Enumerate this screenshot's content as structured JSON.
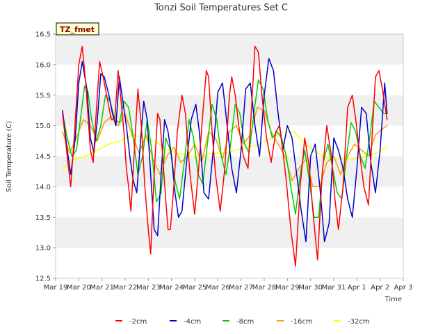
{
  "chart_data": {
    "type": "line",
    "title": "Tonzi Soil Temperatures Set C",
    "xlabel": "Time",
    "ylabel": "Soil Temperature (C)",
    "ylim": [
      12.5,
      16.5
    ],
    "xlim": [
      0,
      15
    ],
    "yticks": [
      "12.5",
      "13.0",
      "13.5",
      "14.0",
      "14.5",
      "15.0",
      "15.5",
      "16.0",
      "16.5"
    ],
    "xticks": [
      "Mar 19",
      "Mar 20",
      "Mar 21",
      "Mar 22",
      "Mar 23",
      "Mar 24",
      "Mar 25",
      "Mar 26",
      "Mar 27",
      "Mar 28",
      "Mar 29",
      "Mar 30",
      "Mar 31",
      "Apr 1",
      "Apr 2",
      "Apr 3"
    ],
    "grid": "horizontal bands",
    "legend_position": "bottom",
    "badge": "TZ_fmet",
    "x_note": "x values are days since Mar 19 00:00",
    "series": [
      {
        "name": "-2cm",
        "color": "#ff0000",
        "x": [
          0.3,
          0.5,
          0.65,
          0.8,
          1.0,
          1.15,
          1.3,
          1.5,
          1.62,
          1.75,
          1.9,
          2.05,
          2.25,
          2.4,
          2.55,
          2.7,
          2.85,
          2.95,
          3.05,
          3.15,
          3.25,
          3.4,
          3.55,
          3.7,
          3.85,
          4.0,
          4.1,
          4.25,
          4.4,
          4.5,
          4.6,
          4.75,
          4.85,
          4.95,
          5.1,
          5.25,
          5.45,
          5.6,
          5.8,
          6.0,
          6.15,
          6.35,
          6.5,
          6.6,
          6.75,
          6.9,
          7.1,
          7.3,
          7.5,
          7.6,
          7.75,
          7.9,
          8.1,
          8.3,
          8.5,
          8.6,
          8.75,
          8.9,
          9.1,
          9.3,
          9.5,
          9.65,
          9.8,
          9.95,
          10.15,
          10.35,
          10.55,
          10.75,
          10.95,
          11.1,
          11.3,
          11.5,
          11.7,
          11.9,
          12.05,
          12.2,
          12.4,
          12.6,
          12.8,
          12.95,
          13.1,
          13.3,
          13.5,
          13.65,
          13.8,
          13.95,
          14.1,
          14.3
        ],
        "y": [
          15.2,
          14.5,
          14.0,
          14.8,
          16.0,
          16.3,
          15.7,
          14.6,
          14.4,
          15.2,
          16.05,
          15.8,
          15.4,
          15.1,
          15.1,
          15.9,
          15.3,
          14.9,
          14.3,
          14.0,
          13.6,
          14.6,
          15.6,
          15.0,
          14.0,
          13.3,
          12.9,
          14.2,
          15.2,
          15.1,
          14.6,
          13.8,
          13.3,
          13.3,
          14.0,
          14.9,
          15.5,
          15.2,
          14.2,
          13.55,
          14.2,
          15.2,
          15.9,
          15.8,
          14.9,
          14.2,
          13.6,
          14.3,
          15.5,
          15.8,
          15.5,
          15.0,
          14.5,
          14.3,
          15.6,
          16.3,
          16.2,
          15.5,
          14.8,
          14.4,
          14.9,
          15.0,
          14.6,
          14.1,
          13.3,
          12.7,
          14.0,
          14.8,
          14.3,
          13.6,
          12.8,
          14.2,
          15.0,
          14.5,
          13.8,
          13.3,
          14.0,
          15.3,
          15.5,
          15.1,
          14.6,
          14.0,
          13.7,
          14.8,
          15.8,
          15.9,
          15.6,
          15.1
        ]
      },
      {
        "name": "-4cm",
        "color": "#0000cc",
        "x": [
          0.3,
          0.5,
          0.65,
          0.85,
          1.0,
          1.15,
          1.35,
          1.5,
          1.65,
          1.8,
          1.95,
          2.1,
          2.3,
          2.45,
          2.6,
          2.75,
          2.9,
          3.05,
          3.2,
          3.35,
          3.5,
          3.65,
          3.8,
          3.95,
          4.1,
          4.25,
          4.4,
          4.55,
          4.7,
          4.85,
          5.0,
          5.15,
          5.3,
          5.45,
          5.65,
          5.85,
          6.05,
          6.2,
          6.4,
          6.6,
          6.8,
          7.0,
          7.2,
          7.4,
          7.6,
          7.8,
          8.0,
          8.2,
          8.4,
          8.6,
          8.8,
          9.0,
          9.2,
          9.4,
          9.6,
          9.8,
          10.0,
          10.2,
          10.4,
          10.6,
          10.8,
          11.0,
          11.2,
          11.4,
          11.6,
          11.8,
          12.0,
          12.2,
          12.4,
          12.6,
          12.8,
          13.0,
          13.2,
          13.4,
          13.6,
          13.8,
          14.0,
          14.2,
          14.3
        ],
        "y": [
          15.25,
          14.6,
          14.2,
          14.8,
          15.7,
          16.05,
          15.6,
          14.8,
          14.55,
          15.1,
          15.85,
          15.8,
          15.5,
          15.2,
          15.0,
          15.8,
          15.4,
          15.0,
          14.5,
          14.1,
          13.9,
          14.7,
          15.4,
          15.1,
          14.2,
          13.3,
          13.2,
          14.2,
          15.1,
          14.9,
          14.5,
          13.9,
          13.5,
          13.6,
          14.4,
          15.1,
          15.35,
          14.9,
          13.9,
          13.8,
          14.6,
          15.55,
          15.7,
          15.0,
          14.3,
          13.9,
          14.6,
          15.6,
          15.7,
          15.0,
          14.5,
          15.5,
          16.1,
          15.9,
          15.2,
          14.6,
          15.0,
          14.8,
          14.2,
          13.6,
          13.1,
          14.5,
          14.7,
          14.0,
          13.1,
          13.4,
          14.8,
          14.6,
          14.3,
          13.8,
          13.5,
          14.3,
          15.3,
          15.2,
          14.4,
          13.9,
          14.6,
          15.7,
          15.2
        ]
      },
      {
        "name": "-8cm",
        "color": "#00cc00",
        "x": [
          0.3,
          0.5,
          0.7,
          0.9,
          1.1,
          1.25,
          1.4,
          1.55,
          1.75,
          1.95,
          2.15,
          2.35,
          2.55,
          2.75,
          2.95,
          3.15,
          3.35,
          3.55,
          3.75,
          3.95,
          4.15,
          4.35,
          4.55,
          4.75,
          4.95,
          5.15,
          5.35,
          5.55,
          5.75,
          5.95,
          6.15,
          6.35,
          6.55,
          6.75,
          6.95,
          7.15,
          7.35,
          7.55,
          7.75,
          7.95,
          8.15,
          8.35,
          8.55,
          8.75,
          8.95,
          9.15,
          9.35,
          9.55,
          9.75,
          9.95,
          10.15,
          10.35,
          10.55,
          10.75,
          10.95,
          11.15,
          11.35,
          11.55,
          11.75,
          11.95,
          12.15,
          12.35,
          12.55,
          12.75,
          12.95,
          13.15,
          13.35,
          13.55,
          13.75,
          13.95,
          14.15,
          14.3
        ],
        "y": [
          15.2,
          14.8,
          14.5,
          14.6,
          15.2,
          15.65,
          15.55,
          15.1,
          14.75,
          15.0,
          15.5,
          15.4,
          15.1,
          15.05,
          15.4,
          15.3,
          14.8,
          14.2,
          14.5,
          15.1,
          14.6,
          13.75,
          13.9,
          14.8,
          14.6,
          14.1,
          13.8,
          14.4,
          15.1,
          14.8,
          14.2,
          14.05,
          14.7,
          15.35,
          15.1,
          14.5,
          14.2,
          14.7,
          15.35,
          15.2,
          14.7,
          14.55,
          15.2,
          15.75,
          15.6,
          15.1,
          14.8,
          14.9,
          14.8,
          14.5,
          14.0,
          13.55,
          14.2,
          14.6,
          14.1,
          13.5,
          13.5,
          14.4,
          14.7,
          14.3,
          13.9,
          13.8,
          14.5,
          15.05,
          14.9,
          14.5,
          14.3,
          14.8,
          15.4,
          15.3,
          15.2,
          15.2
        ]
      },
      {
        "name": "-16cm",
        "color": "#ff9900",
        "x": [
          0.3,
          0.6,
          0.9,
          1.2,
          1.5,
          1.8,
          2.1,
          2.4,
          2.7,
          3.0,
          3.3,
          3.6,
          3.9,
          4.2,
          4.5,
          4.8,
          5.1,
          5.4,
          5.7,
          6.0,
          6.3,
          6.6,
          6.9,
          7.2,
          7.5,
          7.8,
          8.1,
          8.4,
          8.7,
          9.0,
          9.3,
          9.6,
          9.9,
          10.2,
          10.5,
          10.8,
          11.1,
          11.4,
          11.7,
          12.0,
          12.3,
          12.6,
          12.9,
          13.2,
          13.5,
          13.8,
          14.1,
          14.3
        ],
        "y": [
          14.9,
          14.55,
          14.8,
          15.1,
          15.0,
          14.75,
          15.05,
          15.15,
          15.0,
          15.2,
          14.85,
          14.55,
          14.85,
          14.45,
          14.2,
          14.5,
          14.65,
          14.4,
          14.5,
          14.7,
          14.4,
          14.9,
          14.8,
          14.45,
          14.9,
          15.0,
          14.7,
          14.85,
          15.3,
          15.25,
          14.9,
          14.7,
          14.5,
          14.1,
          14.3,
          14.45,
          14.0,
          14.0,
          14.4,
          14.5,
          14.2,
          14.5,
          14.7,
          14.6,
          14.5,
          14.85,
          14.95,
          15.0
        ]
      },
      {
        "name": "-32cm",
        "color": "#ffff00",
        "x": [
          0.3,
          0.8,
          1.3,
          1.8,
          2.3,
          2.8,
          3.3,
          3.8,
          4.3,
          4.8,
          5.3,
          5.8,
          6.3,
          6.8,
          7.3,
          7.8,
          8.3,
          8.8,
          9.3,
          9.8,
          10.3,
          10.8,
          11.3,
          11.8,
          12.3,
          12.8,
          13.3,
          13.8,
          14.3
        ],
        "y": [
          14.3,
          14.45,
          14.5,
          14.6,
          14.7,
          14.75,
          14.85,
          14.8,
          14.75,
          14.6,
          14.55,
          14.5,
          14.5,
          14.55,
          14.55,
          14.6,
          14.65,
          14.7,
          14.8,
          14.9,
          14.9,
          14.7,
          14.55,
          14.45,
          14.45,
          14.45,
          14.5,
          14.55,
          14.65
        ]
      }
    ]
  }
}
